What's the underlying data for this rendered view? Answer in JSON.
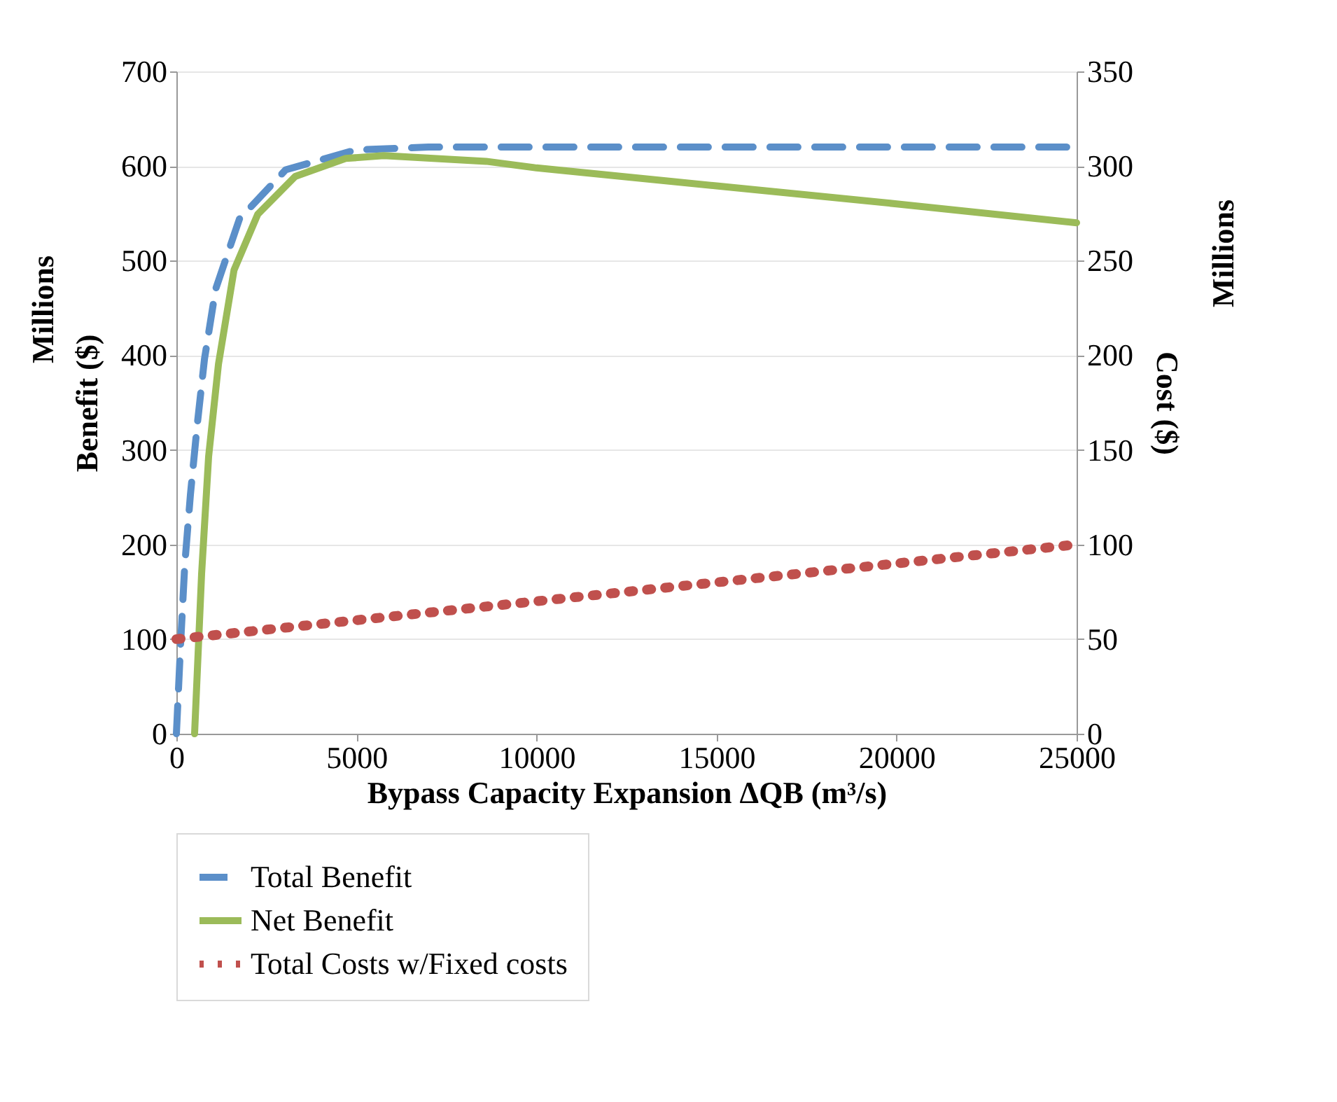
{
  "chart_data": {
    "type": "line",
    "xlabel": "Bypass Capacity Expansion ΔQB (m³/s)",
    "ylabel": "Benefit ($)",
    "y2label": "Cost ($)",
    "annotations": [
      "Millions",
      "Millions"
    ],
    "xlim": [
      0,
      25000
    ],
    "xticks": [
      0,
      5000,
      10000,
      15000,
      20000,
      25000
    ],
    "ylim": [
      0,
      700
    ],
    "yticks": [
      0,
      100,
      200,
      300,
      400,
      500,
      600,
      700
    ],
    "y2lim": [
      0,
      350
    ],
    "y2ticks": [
      0,
      50,
      100,
      150,
      200,
      250,
      300,
      350
    ],
    "grid": "y",
    "legend": "bottom",
    "marker": "none",
    "series": [
      {
        "name": "Total Benefit",
        "color": "#5b8fc9",
        "line_style": "dashed",
        "x": [
          0,
          117,
          233,
          390,
          580,
          780,
          1090,
          1750,
          3035,
          4980,
          7000,
          10000,
          15000,
          20000,
          25000
        ],
        "values": [
          0,
          95,
          179,
          253,
          327,
          396,
          470,
          544,
          596,
          617,
          620,
          620,
          620,
          620,
          620
        ]
      },
      {
        "name": "Net Benefit",
        "color": "#9bbb59",
        "line_style": "solid",
        "x": [
          505,
          700,
          895,
          1170,
          1600,
          2260,
          3300,
          4700,
          5760,
          8600,
          10000,
          15000,
          20000,
          25000
        ],
        "values": [
          0,
          169,
          293,
          391,
          490,
          549,
          589,
          608,
          611,
          605,
          598,
          579,
          560,
          540
        ]
      },
      {
        "name": "Total Costs w/Fixed costs",
        "color": "#c0504d",
        "line_style": "dotted",
        "axis": "y2",
        "x": [
          0,
          5000,
          10000,
          15000,
          20000,
          25000
        ],
        "values": [
          50,
          60,
          70,
          80,
          90,
          100
        ]
      }
    ]
  }
}
